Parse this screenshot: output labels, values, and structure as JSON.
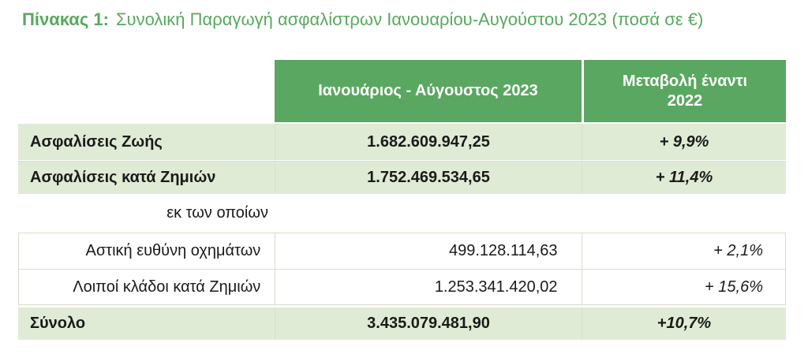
{
  "title": {
    "label": "Πίνακας 1:",
    "text": "Συνολική Παραγωγή ασφαλίστρων Ιανουαρίου-Αυγούστου 2023 (ποσά σε €)"
  },
  "table": {
    "column_headers": {
      "period": "Ιανουάριος - Αύγουστος 2023",
      "change": "Μεταβολή έναντι 2022"
    },
    "rows": [
      {
        "label": "Ασφαλίσεις Ζωής",
        "value": "1.682.609.947,25",
        "change": "+ 9,9%"
      },
      {
        "label": "Ασφαλίσεις κατά Ζημιών",
        "value": "1.752.469.534,65",
        "change": "+ 11,4%"
      }
    ],
    "subheader": "εκ των οποίων",
    "subrows": [
      {
        "label": "Αστική ευθύνη οχημάτων",
        "value": "499.128.114,63",
        "change": "+ 2,1%"
      },
      {
        "label": "Λοιποί κλάδοι κατά Ζημιών",
        "value": "1.253.341.420,02",
        "change": "+ 15,6%"
      }
    ],
    "total": {
      "label": "Σύνολο",
      "value": "3.435.079.481,90",
      "change": "+10,7%"
    }
  },
  "colors": {
    "header_green": "#5aa761",
    "row_light_green": "#e0ebd5",
    "divider_green": "#d5e0c5",
    "title_green": "#58a85e",
    "header_text": "#ffffff",
    "body_text": "#1a1a1a"
  }
}
